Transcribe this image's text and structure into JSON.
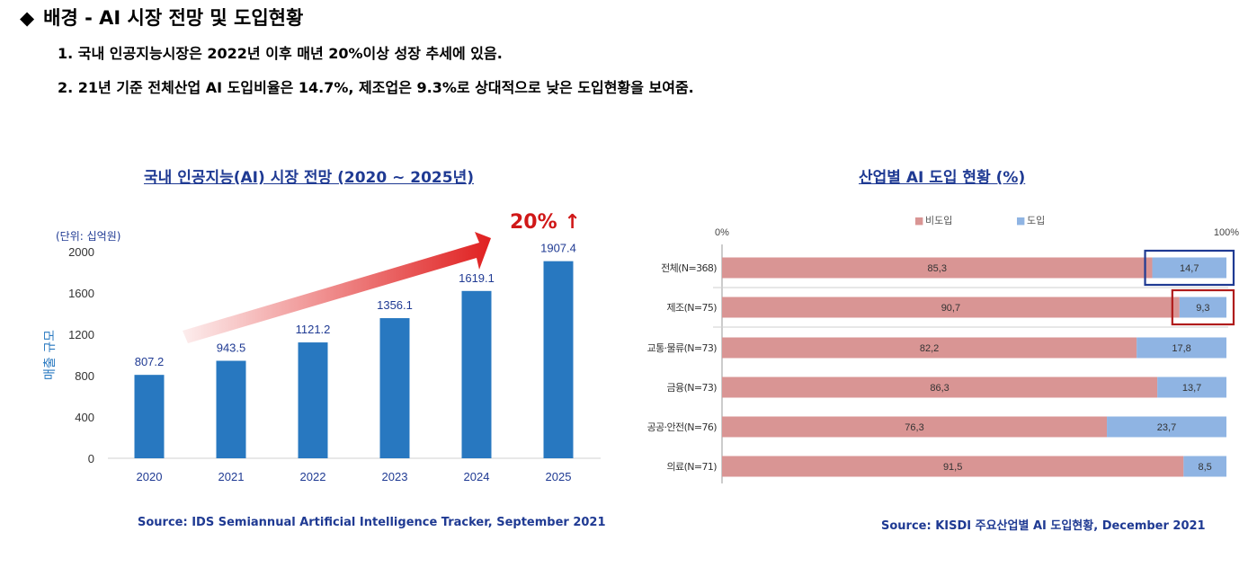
{
  "heading": {
    "bullet": "◆",
    "text": "배경 - AI 시장 전망 및 도입현황"
  },
  "bullets": [
    "1. 국내 인공지능시장은 2022년 이후 매년 20%이상 성장 추세에 있음.",
    "2. 21년 기준 전체산업 AI 도입비율은 14.7%, 제조업은 9.3%로 상대적으로 낮은 도입현황을 보여줌."
  ],
  "sources": {
    "left": "Source: IDS Semiannual Artificial Intelligence Tracker, September 2021",
    "right": "Source: KISDI 주요산업별 AI 도입현황, December 2021"
  },
  "colors": {
    "bar": "#2878c0",
    "arrow": "#e02020",
    "non_adopt": "#d99594",
    "adopt": "#8fb4e3",
    "box_blue": "#1f3a93",
    "box_red": "#b01c1c"
  },
  "chart_data": [
    {
      "type": "bar",
      "title": "국내 인공지능(AI) 시장 전망 (2020 ~ 2025년)",
      "unit_label": "(단위: 십억원)",
      "ylabel": "매출 규모",
      "categories": [
        "2020",
        "2021",
        "2022",
        "2023",
        "2024",
        "2025"
      ],
      "values": [
        807.2,
        943.5,
        1121.2,
        1356.1,
        1619.1,
        1907.4
      ],
      "value_labels": [
        "807.2",
        "943.5",
        "1121.2",
        "1356.1",
        "1619.1",
        "1907.4"
      ],
      "yticks": [
        "0",
        "400",
        "800",
        "1200",
        "1600",
        "2000"
      ],
      "ylim": [
        0,
        2000
      ],
      "annotation": "20% ↑"
    },
    {
      "type": "bar",
      "orientation": "horizontal-stacked",
      "title": "산업별 AI 도입 현황 (%)",
      "legend": [
        "■ 비도입",
        "■ 도입"
      ],
      "legend_placement": "top",
      "xticks": [
        "0%",
        "100%"
      ],
      "xlim": [
        0,
        100
      ],
      "categories": [
        "전체(N=368)",
        "제조(N=75)",
        "교통·물류(N=73)",
        "금융(N=73)",
        "공공·안전(N=76)",
        "의료(N=71)"
      ],
      "series": [
        {
          "name": "비도입",
          "values": [
            85.3,
            90.7,
            82.2,
            86.3,
            76.3,
            91.5
          ],
          "labels": [
            "85,3",
            "90,7",
            "82,2",
            "86,3",
            "76,3",
            "91,5"
          ]
        },
        {
          "name": "도입",
          "values": [
            14.7,
            9.3,
            17.8,
            13.7,
            23.7,
            8.5
          ],
          "labels": [
            "14,7",
            "9,3",
            "17,8",
            "13,7",
            "23,7",
            "8,5"
          ]
        }
      ],
      "highlights": [
        {
          "category": "전체(N=368)",
          "color": "blue"
        },
        {
          "category": "제조(N=75)",
          "color": "red"
        }
      ]
    }
  ]
}
